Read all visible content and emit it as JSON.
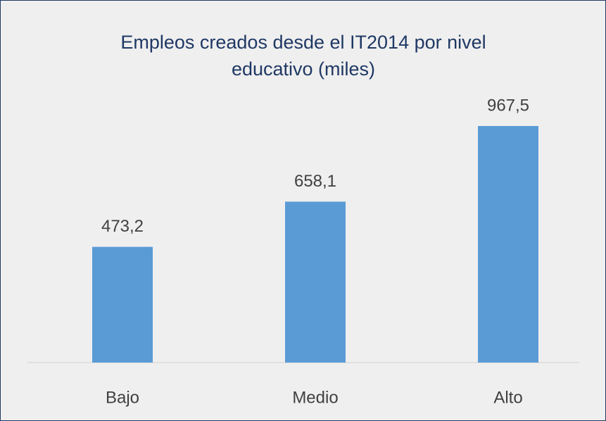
{
  "chart_data": {
    "type": "bar",
    "title": "Empleos creados desde el IT2014 por nivel educativo (miles)",
    "categories": [
      "Bajo",
      "Medio",
      "Alto"
    ],
    "values": [
      473.2,
      658.1,
      967.5
    ],
    "value_labels": [
      "473,2",
      "658,1",
      "967,5"
    ],
    "color": "#5b9bd5"
  }
}
